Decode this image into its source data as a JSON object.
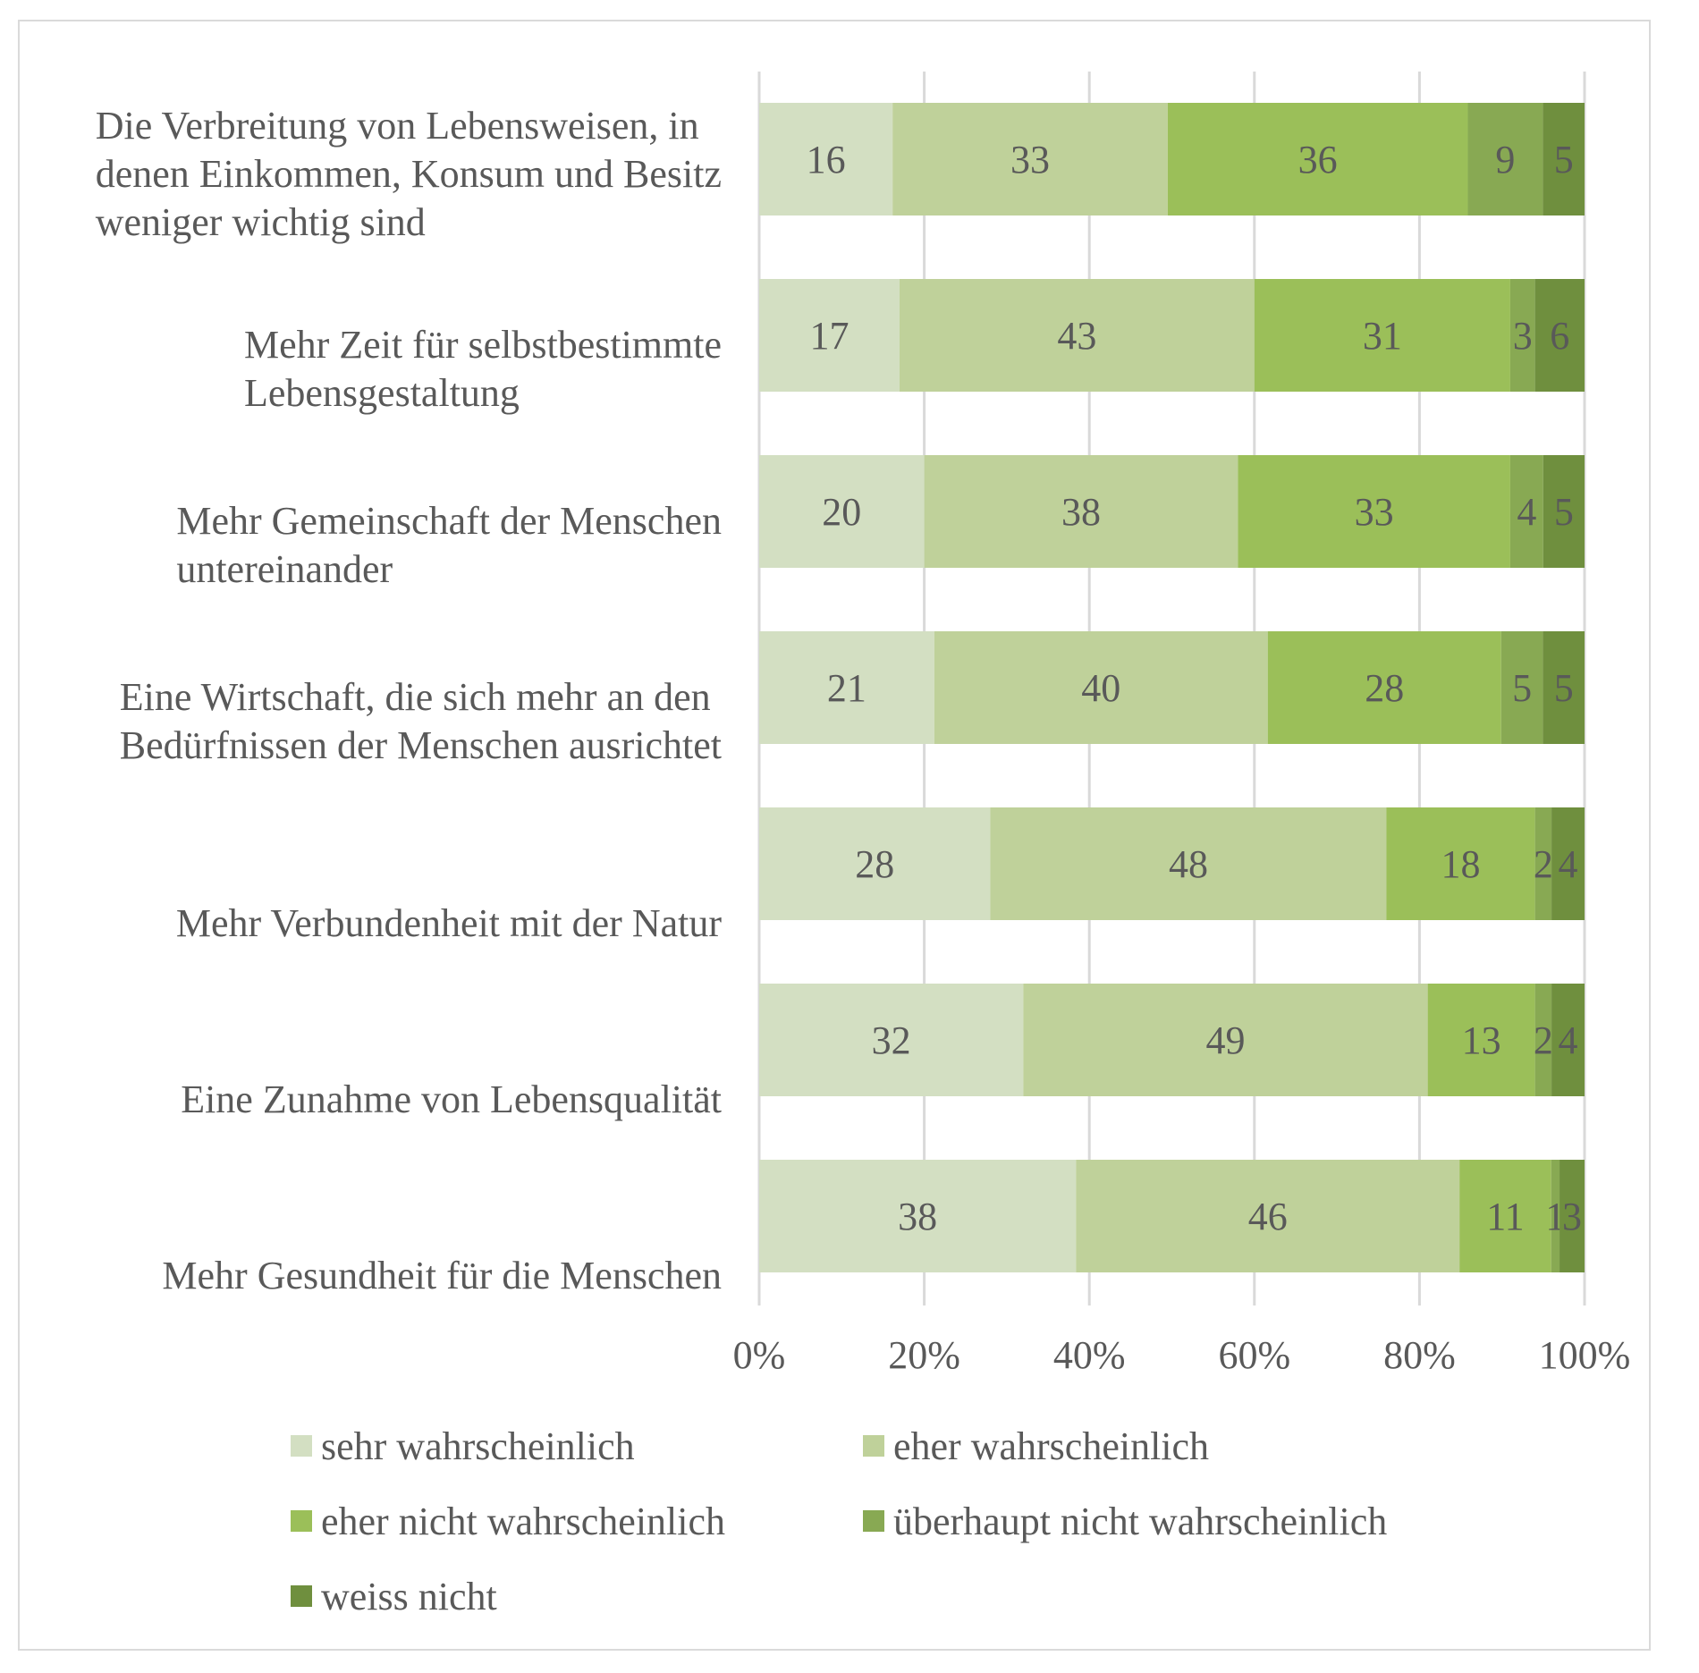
{
  "chart_data": {
    "type": "bar",
    "orientation": "horizontal",
    "stacked": "percent",
    "categories": [
      "Die Verbreitung von Lebensweisen, in denen Einkommen, Konsum und Besitz weniger wichtig sind",
      "Mehr Zeit für selbstbestimmte Lebensgestaltung",
      "Mehr Gemeinschaft der Menschen untereinander",
      "Eine Wirtschaft, die sich mehr an den Bedürfnissen der Menschen ausrichtet",
      "Mehr Verbundenheit mit der Natur",
      "Eine Zunahme von Lebensqualität",
      "Mehr Gesundheit für die Menschen"
    ],
    "category_lines": [
      [
        "Die Verbreitung von Lebensweisen, in",
        "denen Einkommen, Konsum und Besitz",
        "weniger wichtig sind"
      ],
      [
        "Mehr Zeit für selbstbestimmte",
        "Lebensgestaltung"
      ],
      [
        "Mehr Gemeinschaft der Menschen",
        "untereinander"
      ],
      [
        "Eine Wirtschaft, die sich mehr an den",
        "Bedürfnissen der Menschen ausrichtet"
      ],
      [
        "Mehr Verbundenheit mit der Natur"
      ],
      [
        "Eine Zunahme von Lebensqualität"
      ],
      [
        "Mehr Gesundheit für die Menschen"
      ]
    ],
    "series": [
      {
        "name": "sehr wahrscheinlich",
        "color": "#d3dfc2",
        "values": [
          16,
          17,
          20,
          21,
          28,
          32,
          38
        ]
      },
      {
        "name": "eher wahrscheinlich",
        "color": "#bfd19a",
        "values": [
          33,
          43,
          38,
          40,
          48,
          49,
          46
        ]
      },
      {
        "name": "eher nicht wahrscheinlich",
        "color": "#9bbf59",
        "values": [
          36,
          31,
          33,
          28,
          18,
          13,
          11
        ]
      },
      {
        "name": "überhaupt nicht wahrscheinlich",
        "color": "#88a953",
        "values": [
          9,
          3,
          4,
          5,
          2,
          2,
          1
        ]
      },
      {
        "name": "weiss nicht",
        "color": "#6f8f3e",
        "values": [
          5,
          6,
          5,
          5,
          4,
          4,
          3
        ]
      }
    ],
    "x_ticks": [
      "0%",
      "20%",
      "40%",
      "60%",
      "80%",
      "100%"
    ],
    "xlim": [
      0,
      100
    ],
    "grid": true,
    "legend_position": "bottom"
  }
}
